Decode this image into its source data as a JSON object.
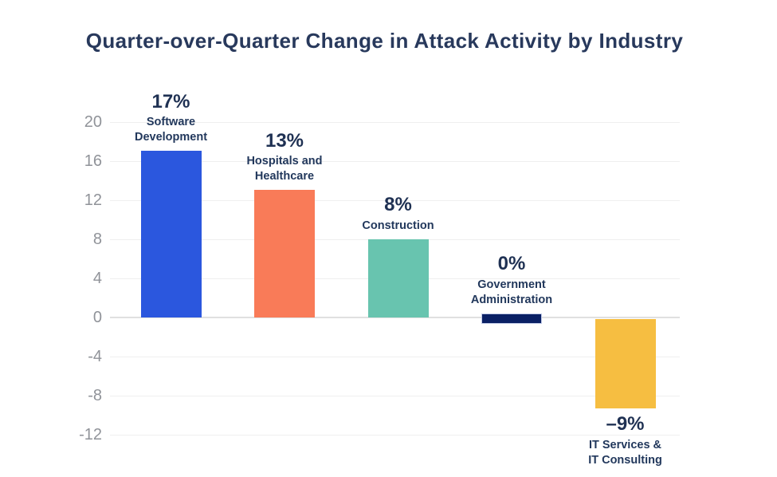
{
  "page": {
    "title": "Quarter-over-Quarter Change in Attack Activity by Industry"
  },
  "chart_data": {
    "type": "bar",
    "title": "Quarter-over-Quarter Change in Attack Activity by Industry",
    "categories": [
      "Software Development",
      "Hospitals and Healthcare",
      "Construction",
      "Government Administration",
      "IT Services & IT Consulting"
    ],
    "values": [
      17,
      13,
      8,
      0,
      -9
    ],
    "value_labels": [
      "17%",
      "13%",
      "8%",
      "0%",
      "–9%"
    ],
    "category_label_lines": [
      [
        "Software",
        "Development"
      ],
      [
        "Hospitals and",
        "Healthcare"
      ],
      [
        "Construction"
      ],
      [
        "Government",
        "Administration"
      ],
      [
        "IT Services &",
        "IT Consulting"
      ]
    ],
    "bar_colors": [
      "#2b57de",
      "#f97b58",
      "#68c4af",
      "#0a2065",
      "#f6be41"
    ],
    "yticks": [
      20,
      16,
      12,
      8,
      4,
      0,
      -4,
      -8,
      -12
    ],
    "ylim": [
      -12,
      20
    ],
    "xlabel": "",
    "ylabel": "",
    "grid": true,
    "legend": false,
    "colors": {
      "title_text": "#28395c",
      "value_label_text": "#1f3153",
      "category_label_text": "#22385c",
      "axis_text": "#909399",
      "gridline": "#efefef",
      "zero_line": "#e0e0e0",
      "background": "#ffffff"
    }
  }
}
